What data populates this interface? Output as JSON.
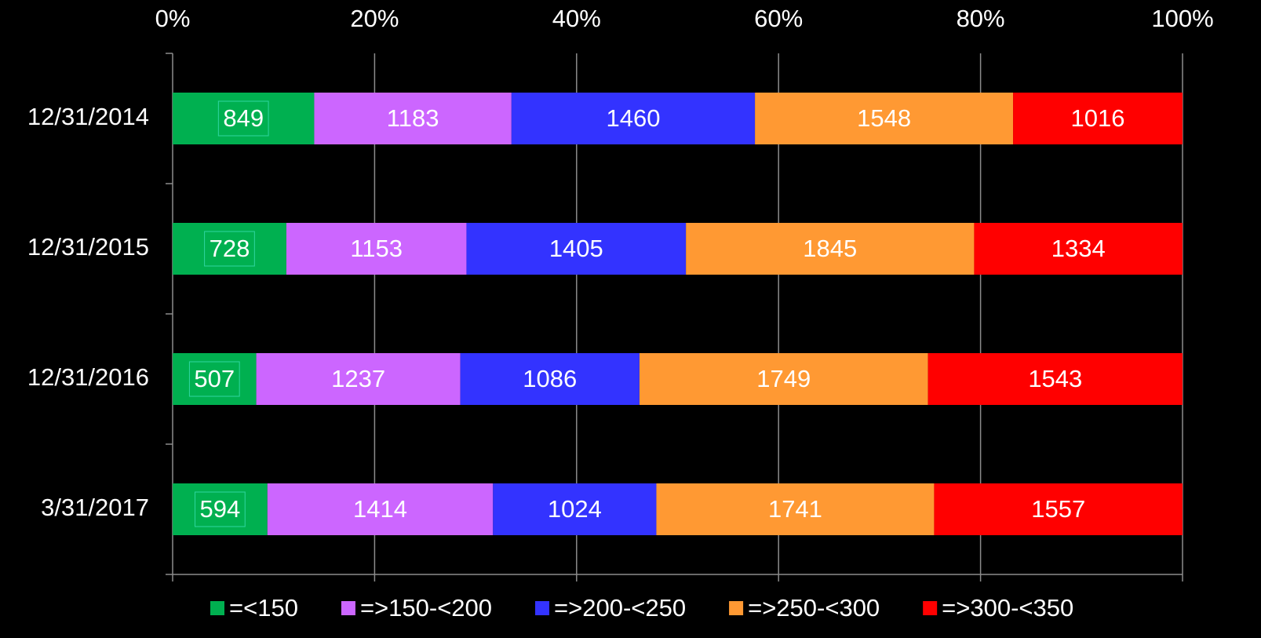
{
  "chart_data": {
    "type": "bar",
    "orientation": "horizontal",
    "stacked": "percent",
    "categories": [
      "12/31/2014",
      "12/31/2015",
      "12/31/2016",
      "3/31/2017"
    ],
    "series": [
      {
        "name": "=<150",
        "color": "#00b050",
        "label_color": "#ffffff",
        "values": [
          849,
          728,
          507,
          594
        ]
      },
      {
        "name": "=>150-<200",
        "color": "#cc66ff",
        "label_color": "#ffffff",
        "values": [
          1183,
          1153,
          1237,
          1414
        ]
      },
      {
        "name": "=>200-<250",
        "color": "#3333ff",
        "label_color": "#ffffff",
        "values": [
          1460,
          1405,
          1086,
          1024
        ]
      },
      {
        "name": "=>250-<300",
        "color": "#ff9933",
        "label_color": "#000000",
        "values": [
          1548,
          1845,
          1749,
          1741
        ]
      },
      {
        "name": "=>300-<350",
        "color": "#ff0000",
        "label_color": "#000000",
        "values": [
          1016,
          1334,
          1543,
          1557
        ]
      }
    ],
    "xlim": [
      0,
      100
    ],
    "xticks": [
      {
        "value": 0,
        "label": "0%"
      },
      {
        "value": 20,
        "label": "20%"
      },
      {
        "value": 40,
        "label": "40%"
      },
      {
        "value": 60,
        "label": "60%"
      },
      {
        "value": 80,
        "label": "80%"
      },
      {
        "value": 100,
        "label": "100%"
      }
    ],
    "grid": true,
    "legend": "bottom"
  }
}
